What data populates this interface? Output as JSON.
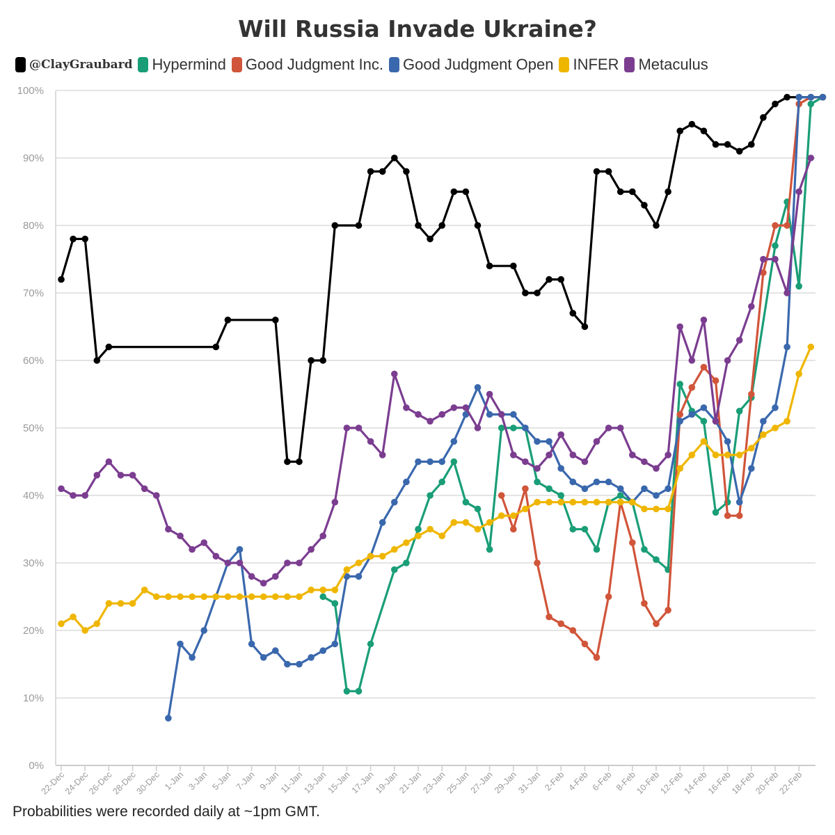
{
  "chart_data": {
    "type": "line",
    "title": "Will Russia Invade Ukraine?",
    "footnote": "Probabilities were recorded daily at ~1pm GMT.",
    "xlabel": "",
    "ylabel": "",
    "ylim": [
      0,
      100
    ],
    "yticks": [
      "0%",
      "10%",
      "20%",
      "30%",
      "40%",
      "50%",
      "60%",
      "70%",
      "80%",
      "90%",
      "100%"
    ],
    "xticks": [
      "22-Dec",
      "24-Dec",
      "26-Dec",
      "28-Dec",
      "30-Dec",
      "1-Jan",
      "3-Jan",
      "5-Jan",
      "7-Jan",
      "9-Jan",
      "11-Jan",
      "13-Jan",
      "15-Jan",
      "17-Jan",
      "19-Jan",
      "21-Jan",
      "23-Jan",
      "25-Jan",
      "27-Jan",
      "29-Jan",
      "31-Jan",
      "2-Feb",
      "4-Feb",
      "6-Feb",
      "8-Feb",
      "10-Feb",
      "12-Feb",
      "14-Feb",
      "16-Feb",
      "18-Feb",
      "20-Feb",
      "22-Feb"
    ],
    "grid": true,
    "legend_position": "top",
    "series": [
      {
        "name": "@ClayGraubard",
        "color": "#000000",
        "points": [
          [
            0,
            72
          ],
          [
            1,
            78
          ],
          [
            2,
            78
          ],
          [
            3,
            60
          ],
          [
            4,
            62
          ],
          [
            13,
            62
          ],
          [
            14,
            66
          ],
          [
            18,
            66
          ],
          [
            19,
            45
          ],
          [
            20,
            45
          ],
          [
            21,
            60
          ],
          [
            22,
            60
          ],
          [
            23,
            80
          ],
          [
            25,
            80
          ],
          [
            26,
            88
          ],
          [
            27,
            88
          ],
          [
            28,
            90
          ],
          [
            29,
            88
          ],
          [
            30,
            80
          ],
          [
            31,
            78
          ],
          [
            32,
            80
          ],
          [
            33,
            85
          ],
          [
            34,
            85
          ],
          [
            35,
            80
          ],
          [
            36,
            74
          ],
          [
            38,
            74
          ],
          [
            39,
            70
          ],
          [
            40,
            70
          ],
          [
            41,
            72
          ],
          [
            42,
            72
          ],
          [
            43,
            67
          ],
          [
            44,
            65
          ],
          [
            45,
            88
          ],
          [
            46,
            88
          ],
          [
            47,
            85
          ],
          [
            48,
            85
          ],
          [
            49,
            83
          ],
          [
            50,
            80
          ],
          [
            51,
            85
          ],
          [
            52,
            94
          ],
          [
            53,
            95
          ],
          [
            54,
            94
          ],
          [
            55,
            92
          ],
          [
            56,
            92
          ],
          [
            57,
            91
          ],
          [
            58,
            92
          ],
          [
            59,
            96
          ],
          [
            60,
            98
          ],
          [
            61,
            99
          ],
          [
            62,
            99
          ],
          [
            63,
            99
          ],
          [
            64,
            99
          ]
        ]
      },
      {
        "name": "Hypermind",
        "color": "#1a9e77",
        "points": [
          [
            22,
            25
          ],
          [
            23,
            24
          ],
          [
            24,
            11
          ],
          [
            25,
            11
          ],
          [
            26,
            18
          ],
          [
            28,
            29
          ],
          [
            29,
            30
          ],
          [
            30,
            35
          ],
          [
            31,
            40
          ],
          [
            32,
            42
          ],
          [
            33,
            45
          ],
          [
            34,
            39
          ],
          [
            35,
            38
          ],
          [
            36,
            32
          ],
          [
            37,
            50
          ],
          [
            38,
            50
          ],
          [
            39,
            50
          ],
          [
            40,
            42
          ],
          [
            41,
            41
          ],
          [
            42,
            40
          ],
          [
            43,
            35
          ],
          [
            44,
            35
          ],
          [
            45,
            32
          ],
          [
            46,
            39
          ],
          [
            47,
            40
          ],
          [
            48,
            39
          ],
          [
            49,
            32
          ],
          [
            50,
            30.5
          ],
          [
            51,
            29
          ],
          [
            52,
            56.5
          ],
          [
            53,
            52.5
          ],
          [
            54,
            51
          ],
          [
            55,
            37.5
          ],
          [
            56,
            39
          ],
          [
            57,
            52.5
          ],
          [
            58,
            54.5
          ],
          [
            60,
            77
          ],
          [
            61,
            83.5
          ],
          [
            62,
            71
          ],
          [
            63,
            98
          ],
          [
            64,
            99
          ]
        ]
      },
      {
        "name": "Good Judgment Inc.",
        "color": "#d1553a",
        "points": [
          [
            37,
            40
          ],
          [
            38,
            35
          ],
          [
            39,
            41
          ],
          [
            40,
            30
          ],
          [
            41,
            22
          ],
          [
            42,
            21
          ],
          [
            43,
            20
          ],
          [
            44,
            18
          ],
          [
            45,
            16
          ],
          [
            46,
            25
          ],
          [
            47,
            39
          ],
          [
            48,
            33
          ],
          [
            49,
            24
          ],
          [
            50,
            21
          ],
          [
            51,
            23
          ],
          [
            52,
            52
          ],
          [
            53,
            56
          ],
          [
            54,
            59
          ],
          [
            55,
            57
          ],
          [
            56,
            37
          ],
          [
            57,
            37
          ],
          [
            58,
            55
          ],
          [
            59,
            73
          ],
          [
            60,
            80
          ],
          [
            61,
            80
          ],
          [
            62,
            98
          ],
          [
            63,
            99
          ],
          [
            64,
            99
          ]
        ]
      },
      {
        "name": "Good Judgment Open",
        "color": "#3a68ad",
        "points": [
          [
            9,
            7
          ],
          [
            10,
            18
          ],
          [
            11,
            16
          ],
          [
            12,
            20
          ],
          [
            14,
            30
          ],
          [
            15,
            32
          ],
          [
            16,
            18
          ],
          [
            17,
            16
          ],
          [
            18,
            17
          ],
          [
            19,
            15
          ],
          [
            20,
            15
          ],
          [
            21,
            16
          ],
          [
            22,
            17
          ],
          [
            23,
            18
          ],
          [
            24,
            28
          ],
          [
            25,
            28
          ],
          [
            26,
            31
          ],
          [
            27,
            36
          ],
          [
            28,
            39
          ],
          [
            29,
            42
          ],
          [
            30,
            45
          ],
          [
            31,
            45
          ],
          [
            32,
            45
          ],
          [
            33,
            48
          ],
          [
            34,
            52
          ],
          [
            35,
            56
          ],
          [
            36,
            52
          ],
          [
            37,
            52
          ],
          [
            38,
            52
          ],
          [
            39,
            50
          ],
          [
            40,
            48
          ],
          [
            41,
            48
          ],
          [
            42,
            44
          ],
          [
            43,
            42
          ],
          [
            44,
            41
          ],
          [
            45,
            42
          ],
          [
            46,
            42
          ],
          [
            47,
            41
          ],
          [
            48,
            39
          ],
          [
            49,
            41
          ],
          [
            50,
            40
          ],
          [
            51,
            41
          ],
          [
            52,
            51
          ],
          [
            53,
            52
          ],
          [
            54,
            53
          ],
          [
            55,
            51
          ],
          [
            56,
            48
          ],
          [
            57,
            39
          ],
          [
            58,
            44
          ],
          [
            59,
            51
          ],
          [
            60,
            53
          ],
          [
            61,
            62
          ],
          [
            62,
            99
          ],
          [
            63,
            99
          ],
          [
            64,
            99
          ]
        ]
      },
      {
        "name": "INFER",
        "color": "#efb600",
        "points": [
          [
            0,
            21
          ],
          [
            1,
            22
          ],
          [
            2,
            20
          ],
          [
            3,
            21
          ],
          [
            4,
            24
          ],
          [
            5,
            24
          ],
          [
            6,
            24
          ],
          [
            7,
            26
          ],
          [
            8,
            25
          ],
          [
            9,
            25
          ],
          [
            10,
            25
          ],
          [
            11,
            25
          ],
          [
            12,
            25
          ],
          [
            13,
            25
          ],
          [
            14,
            25
          ],
          [
            15,
            25
          ],
          [
            16,
            25
          ],
          [
            17,
            25
          ],
          [
            18,
            25
          ],
          [
            19,
            25
          ],
          [
            20,
            25
          ],
          [
            21,
            26
          ],
          [
            22,
            26
          ],
          [
            23,
            26
          ],
          [
            24,
            29
          ],
          [
            25,
            30
          ],
          [
            26,
            31
          ],
          [
            27,
            31
          ],
          [
            28,
            32
          ],
          [
            29,
            33
          ],
          [
            30,
            34
          ],
          [
            31,
            35
          ],
          [
            32,
            34
          ],
          [
            33,
            36
          ],
          [
            34,
            36
          ],
          [
            35,
            35
          ],
          [
            36,
            36
          ],
          [
            37,
            37
          ],
          [
            38,
            37
          ],
          [
            39,
            38
          ],
          [
            40,
            39
          ],
          [
            41,
            39
          ],
          [
            42,
            39
          ],
          [
            43,
            39
          ],
          [
            44,
            39
          ],
          [
            45,
            39
          ],
          [
            46,
            39
          ],
          [
            47,
            39
          ],
          [
            48,
            39
          ],
          [
            49,
            38
          ],
          [
            50,
            38
          ],
          [
            51,
            38
          ],
          [
            52,
            44
          ],
          [
            53,
            46
          ],
          [
            54,
            48
          ],
          [
            55,
            46
          ],
          [
            56,
            46
          ],
          [
            57,
            46
          ],
          [
            58,
            47
          ],
          [
            59,
            49
          ],
          [
            60,
            50
          ],
          [
            61,
            51
          ],
          [
            62,
            58
          ],
          [
            63,
            62
          ]
        ]
      },
      {
        "name": "Metaculus",
        "color": "#7b3d90",
        "points": [
          [
            0,
            41
          ],
          [
            1,
            40
          ],
          [
            2,
            40
          ],
          [
            3,
            43
          ],
          [
            4,
            45
          ],
          [
            5,
            43
          ],
          [
            6,
            43
          ],
          [
            7,
            41
          ],
          [
            8,
            40
          ],
          [
            9,
            35
          ],
          [
            10,
            34
          ],
          [
            11,
            32
          ],
          [
            12,
            33
          ],
          [
            13,
            31
          ],
          [
            14,
            30
          ],
          [
            15,
            30
          ],
          [
            16,
            28
          ],
          [
            17,
            27
          ],
          [
            18,
            28
          ],
          [
            19,
            30
          ],
          [
            20,
            30
          ],
          [
            21,
            32
          ],
          [
            22,
            34
          ],
          [
            23,
            39
          ],
          [
            24,
            50
          ],
          [
            25,
            50
          ],
          [
            26,
            48
          ],
          [
            27,
            46
          ],
          [
            28,
            58
          ],
          [
            29,
            53
          ],
          [
            30,
            52
          ],
          [
            31,
            51
          ],
          [
            32,
            52
          ],
          [
            33,
            53
          ],
          [
            34,
            53
          ],
          [
            35,
            50
          ],
          [
            36,
            55
          ],
          [
            37,
            52
          ],
          [
            38,
            46
          ],
          [
            39,
            45
          ],
          [
            40,
            44
          ],
          [
            41,
            46
          ],
          [
            42,
            49
          ],
          [
            43,
            46
          ],
          [
            44,
            45
          ],
          [
            45,
            48
          ],
          [
            46,
            50
          ],
          [
            47,
            50
          ],
          [
            48,
            46
          ],
          [
            49,
            45
          ],
          [
            50,
            44
          ],
          [
            51,
            46
          ],
          [
            52,
            65
          ],
          [
            53,
            60
          ],
          [
            54,
            66
          ],
          [
            55,
            51
          ],
          [
            56,
            60
          ],
          [
            57,
            63
          ],
          [
            58,
            68
          ],
          [
            59,
            75
          ],
          [
            60,
            75
          ],
          [
            61,
            70
          ],
          [
            62,
            85
          ],
          [
            63,
            90
          ]
        ]
      }
    ]
  }
}
